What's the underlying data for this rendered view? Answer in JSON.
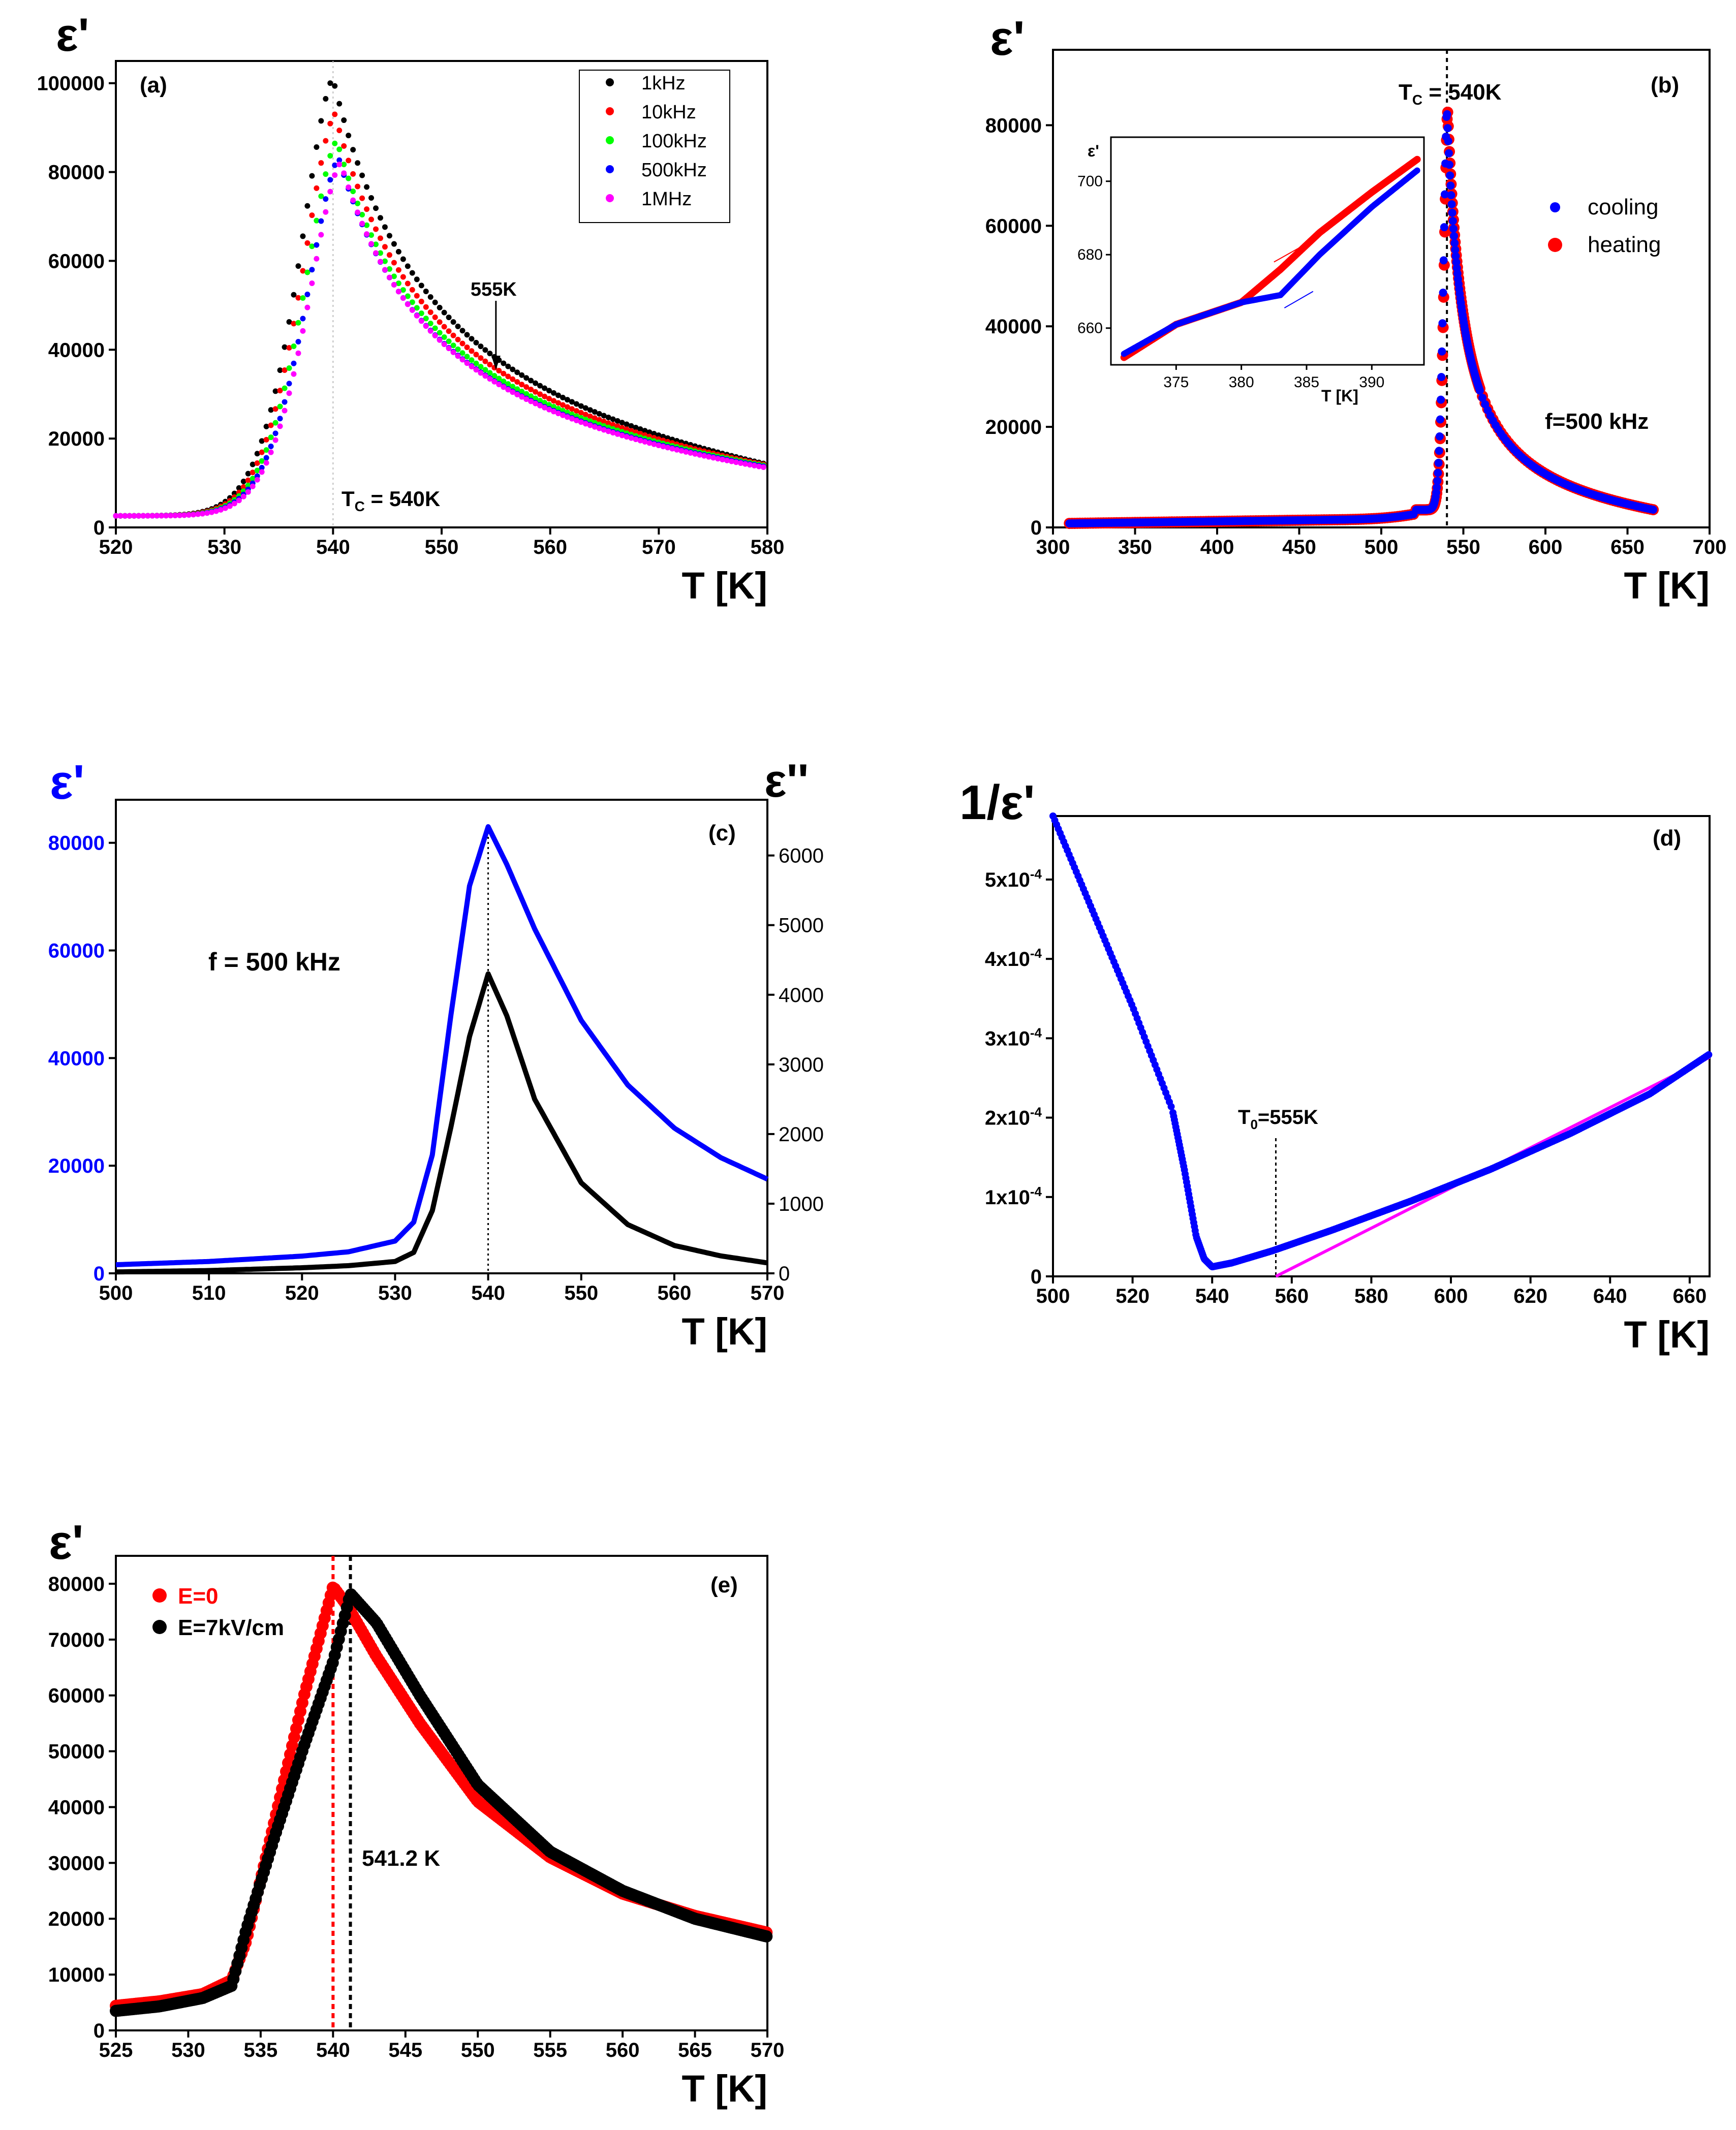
{
  "colors": {
    "black": "#000000",
    "red": "#ff0000",
    "green": "#00ff00",
    "blue": "#0000ff",
    "magenta": "#ff00ff",
    "blue_curve": "#0000ff",
    "dark_red": "#e00000"
  },
  "chart_data": [
    {
      "panel": "(a)",
      "type": "scatter",
      "ylabel": "ε'",
      "xlabel": "T [K]",
      "xlim": [
        520,
        580
      ],
      "ylim": [
        0,
        105000
      ],
      "xticks": [
        520,
        530,
        540,
        550,
        560,
        570,
        580
      ],
      "yticks": [
        0,
        20000,
        40000,
        60000,
        80000,
        100000
      ],
      "legend_position": "top-right",
      "annotations": {
        "arrow": "555K",
        "tc": "T",
        "tc_sub": "C",
        "tc_rest": " = 540K"
      },
      "series": [
        {
          "name": "1kHz",
          "color": "#000000",
          "peak": 101000,
          "high_end": 14200
        },
        {
          "name": "10kHz",
          "color": "#ff0000",
          "peak": 93000,
          "high_end": 14000
        },
        {
          "name": "100kHz",
          "color": "#00ff00",
          "peak": 87000,
          "high_end": 13800
        },
        {
          "name": "500kHz",
          "color": "#0000ff",
          "peak": 83000,
          "high_end": 13600
        },
        {
          "name": "1MHz",
          "color": "#ff00ff",
          "peak": 82000,
          "high_end": 13400
        }
      ]
    },
    {
      "panel": "(b)",
      "type": "scatter",
      "ylabel": "ε'",
      "xlabel": "T [K]",
      "xlim": [
        300,
        700
      ],
      "ylim": [
        0,
        95000
      ],
      "xticks": [
        300,
        350,
        400,
        450,
        500,
        550,
        600,
        650,
        700
      ],
      "yticks": [
        0,
        20000,
        40000,
        60000,
        80000
      ],
      "legend_position": "right",
      "annotations": {
        "tc": "T",
        "tc_sub": "C",
        "tc_rest": " = 540K",
        "freq": "f=500 kHz"
      },
      "series": [
        {
          "name": "cooling",
          "color": "#0000ff",
          "peak": 83000
        },
        {
          "name": "heating",
          "color": "#ff0000",
          "peak": 83000
        }
      ],
      "inset": {
        "ylabel": "ε'",
        "xlabel": "T [K]",
        "xlim": [
          370,
          394
        ],
        "ylim": [
          650,
          712
        ],
        "xticks": [
          375,
          380,
          385,
          390
        ],
        "yticks": [
          660,
          680,
          700
        ],
        "heating": [
          [
            371,
            652
          ],
          [
            375,
            661
          ],
          [
            380,
            667
          ],
          [
            383,
            676
          ],
          [
            386,
            686
          ],
          [
            390,
            697
          ],
          [
            393.5,
            706
          ]
        ],
        "cooling": [
          [
            371,
            653
          ],
          [
            375,
            661
          ],
          [
            380,
            667
          ],
          [
            383,
            669
          ],
          [
            386,
            680
          ],
          [
            390,
            693
          ],
          [
            393.5,
            703
          ]
        ]
      }
    },
    {
      "panel": "(c)",
      "type": "line",
      "ylabel": "ε'",
      "ylabel_right": "ε''",
      "xlabel": "T [K]",
      "xlim": [
        500,
        570
      ],
      "ylim": [
        0,
        88000
      ],
      "ylim_right": [
        0,
        6800
      ],
      "xticks": [
        500,
        510,
        520,
        530,
        540,
        550,
        560,
        570
      ],
      "yticks": [
        0,
        20000,
        40000,
        60000,
        80000
      ],
      "yticks_right": [
        0,
        1000,
        2000,
        3000,
        4000,
        5000,
        6000
      ],
      "annotations": {
        "freq": "f = 500 kHz"
      },
      "series": [
        {
          "name": "",
          "axis": "left",
          "color": "#0000ff",
          "x": [
            500,
            510,
            520,
            525,
            530,
            532,
            534,
            536,
            538,
            540,
            542,
            545,
            550,
            555,
            560,
            565,
            570
          ],
          "y": [
            1600,
            2200,
            3200,
            4000,
            6000,
            9500,
            22000,
            48000,
            72000,
            83000,
            76000,
            64000,
            47000,
            35000,
            27000,
            21500,
            17500
          ]
        },
        {
          "name": "",
          "axis": "right",
          "color": "#000000",
          "x": [
            500,
            510,
            520,
            525,
            530,
            532,
            534,
            536,
            538,
            540,
            542,
            545,
            550,
            555,
            560,
            565,
            570
          ],
          "y": [
            20,
            40,
            80,
            110,
            170,
            300,
            900,
            2100,
            3400,
            4300,
            3700,
            2500,
            1300,
            700,
            400,
            250,
            150
          ]
        }
      ]
    },
    {
      "panel": "(d)",
      "type": "scatter",
      "ylabel": "1/ε'",
      "xlabel": "T [K]",
      "xlim": [
        500,
        665
      ],
      "ylim": [
        0,
        0.00058
      ],
      "xticks": [
        500,
        520,
        540,
        560,
        580,
        600,
        620,
        640,
        660
      ],
      "yticks": [
        0,
        0.0001,
        0.0002,
        0.0003,
        0.0004,
        0.0005
      ],
      "ytick_labels": [
        "0",
        "1x10",
        "2x10",
        "3x10",
        "4x10",
        "5x10"
      ],
      "ytick_exp": "-4",
      "annotations": {
        "t0": "T",
        "t0_sub": "0",
        "t0_rest": "=555K"
      },
      "series": [
        {
          "name": "",
          "color": "#0000ff",
          "x": [
            500,
            510,
            520,
            530,
            533,
            536,
            538,
            540,
            545,
            555,
            570,
            590,
            610,
            630,
            650,
            665
          ],
          "y": [
            0.00058,
            0.00046,
            0.00034,
            0.00021,
            0.000135,
            5e-05,
            2.2e-05,
            1.2e-05,
            1.7e-05,
            3.2e-05,
            5.8e-05,
            9.5e-05,
            0.000135,
            0.00018,
            0.00023,
            0.00028
          ]
        },
        {
          "name": "",
          "color": "#ff00ff",
          "x": [
            556,
            665
          ],
          "y": [
            0,
            0.000276
          ]
        }
      ]
    },
    {
      "panel": "(e)",
      "type": "scatter",
      "ylabel": "ε'",
      "xlabel": "T [K]",
      "xlim": [
        525,
        570
      ],
      "ylim": [
        0,
        85000
      ],
      "xticks": [
        525,
        530,
        535,
        540,
        545,
        550,
        555,
        560,
        565,
        570
      ],
      "yticks": [
        0,
        10000,
        20000,
        30000,
        40000,
        50000,
        60000,
        70000,
        80000
      ],
      "legend_position": "top-left",
      "annotations": {
        "tc": "541.2 K"
      },
      "series": [
        {
          "name": "E=0",
          "color": "#ff0000",
          "x": [
            525,
            528,
            531,
            533,
            534,
            536,
            538,
            540,
            541,
            543,
            546,
            550,
            555,
            560,
            565,
            570
          ],
          "y": [
            4400,
            5200,
            6500,
            9000,
            16000,
            38000,
            60000,
            79500,
            76000,
            67000,
            55000,
            41000,
            31000,
            24500,
            20500,
            17500
          ]
        },
        {
          "name": "E=7kV/cm",
          "color": "#000000",
          "x": [
            525,
            528,
            531,
            533,
            534,
            536,
            538,
            540,
            541.2,
            543,
            546,
            550,
            555,
            560,
            565,
            570
          ],
          "y": [
            3500,
            4300,
            5800,
            8000,
            18000,
            35000,
            51000,
            66000,
            78200,
            73000,
            60000,
            44000,
            32000,
            25000,
            20000,
            16800
          ]
        }
      ]
    }
  ]
}
